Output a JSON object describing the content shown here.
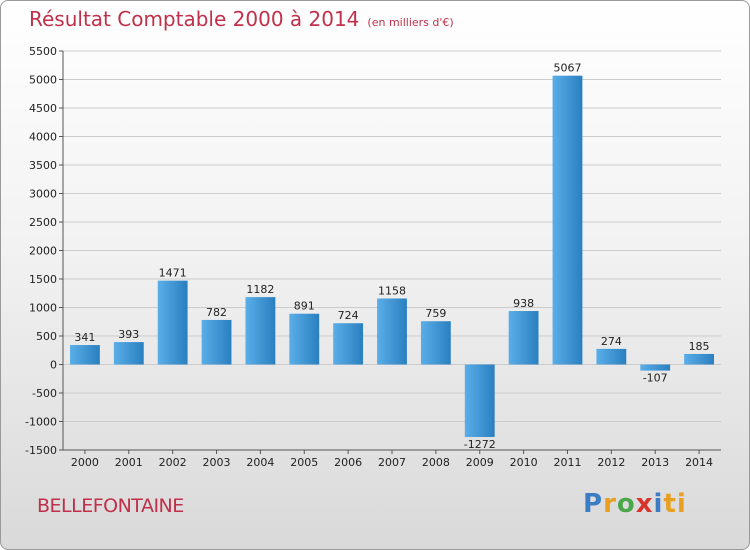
{
  "header": {
    "title": "Résultat Comptable 2000 à 2014",
    "subtitle": "(en milliers d'€)"
  },
  "footer": {
    "city": "BELLEFONTAINE",
    "logo": [
      "P",
      "r",
      "o",
      "x",
      "i",
      "ti"
    ]
  },
  "colors": {
    "bar_light": "#5aaee8",
    "bar_dark": "#2a7fc0",
    "grid": "#cccccc",
    "title": "#c0304a"
  },
  "chart_data": {
    "type": "bar",
    "title": "Résultat Comptable 2000 à 2014",
    "subtitle": "(en milliers d'€)",
    "xlabel": "",
    "ylabel": "",
    "ylim": [
      -1500,
      5500
    ],
    "yticks": [
      5500,
      5000,
      4500,
      4000,
      3500,
      3000,
      2500,
      2000,
      1500,
      1000,
      500,
      0,
      -500,
      -1000,
      -1500
    ],
    "ytick_labels": [
      "5500",
      "5000",
      "4500",
      "4000",
      "3500",
      "3000",
      "2500",
      "2000",
      "1500",
      "1000",
      "500",
      "0",
      "-500",
      "-1000",
      "-1500"
    ],
    "categories": [
      "2000",
      "2001",
      "2002",
      "2003",
      "2004",
      "2005",
      "2006",
      "2007",
      "2008",
      "2009",
      "2010",
      "2011",
      "2012",
      "2013",
      "2014"
    ],
    "values": [
      341,
      393,
      1471,
      782,
      1182,
      891,
      724,
      1158,
      759,
      -1272,
      938,
      5067,
      274,
      -107,
      185
    ],
    "value_labels": [
      "341",
      "393",
      "1471",
      "782",
      "1182",
      "891",
      "724",
      "1158",
      "759",
      "-1272",
      "938",
      "5067",
      "274",
      "-107",
      "185"
    ],
    "grid": true,
    "legend": "none"
  }
}
